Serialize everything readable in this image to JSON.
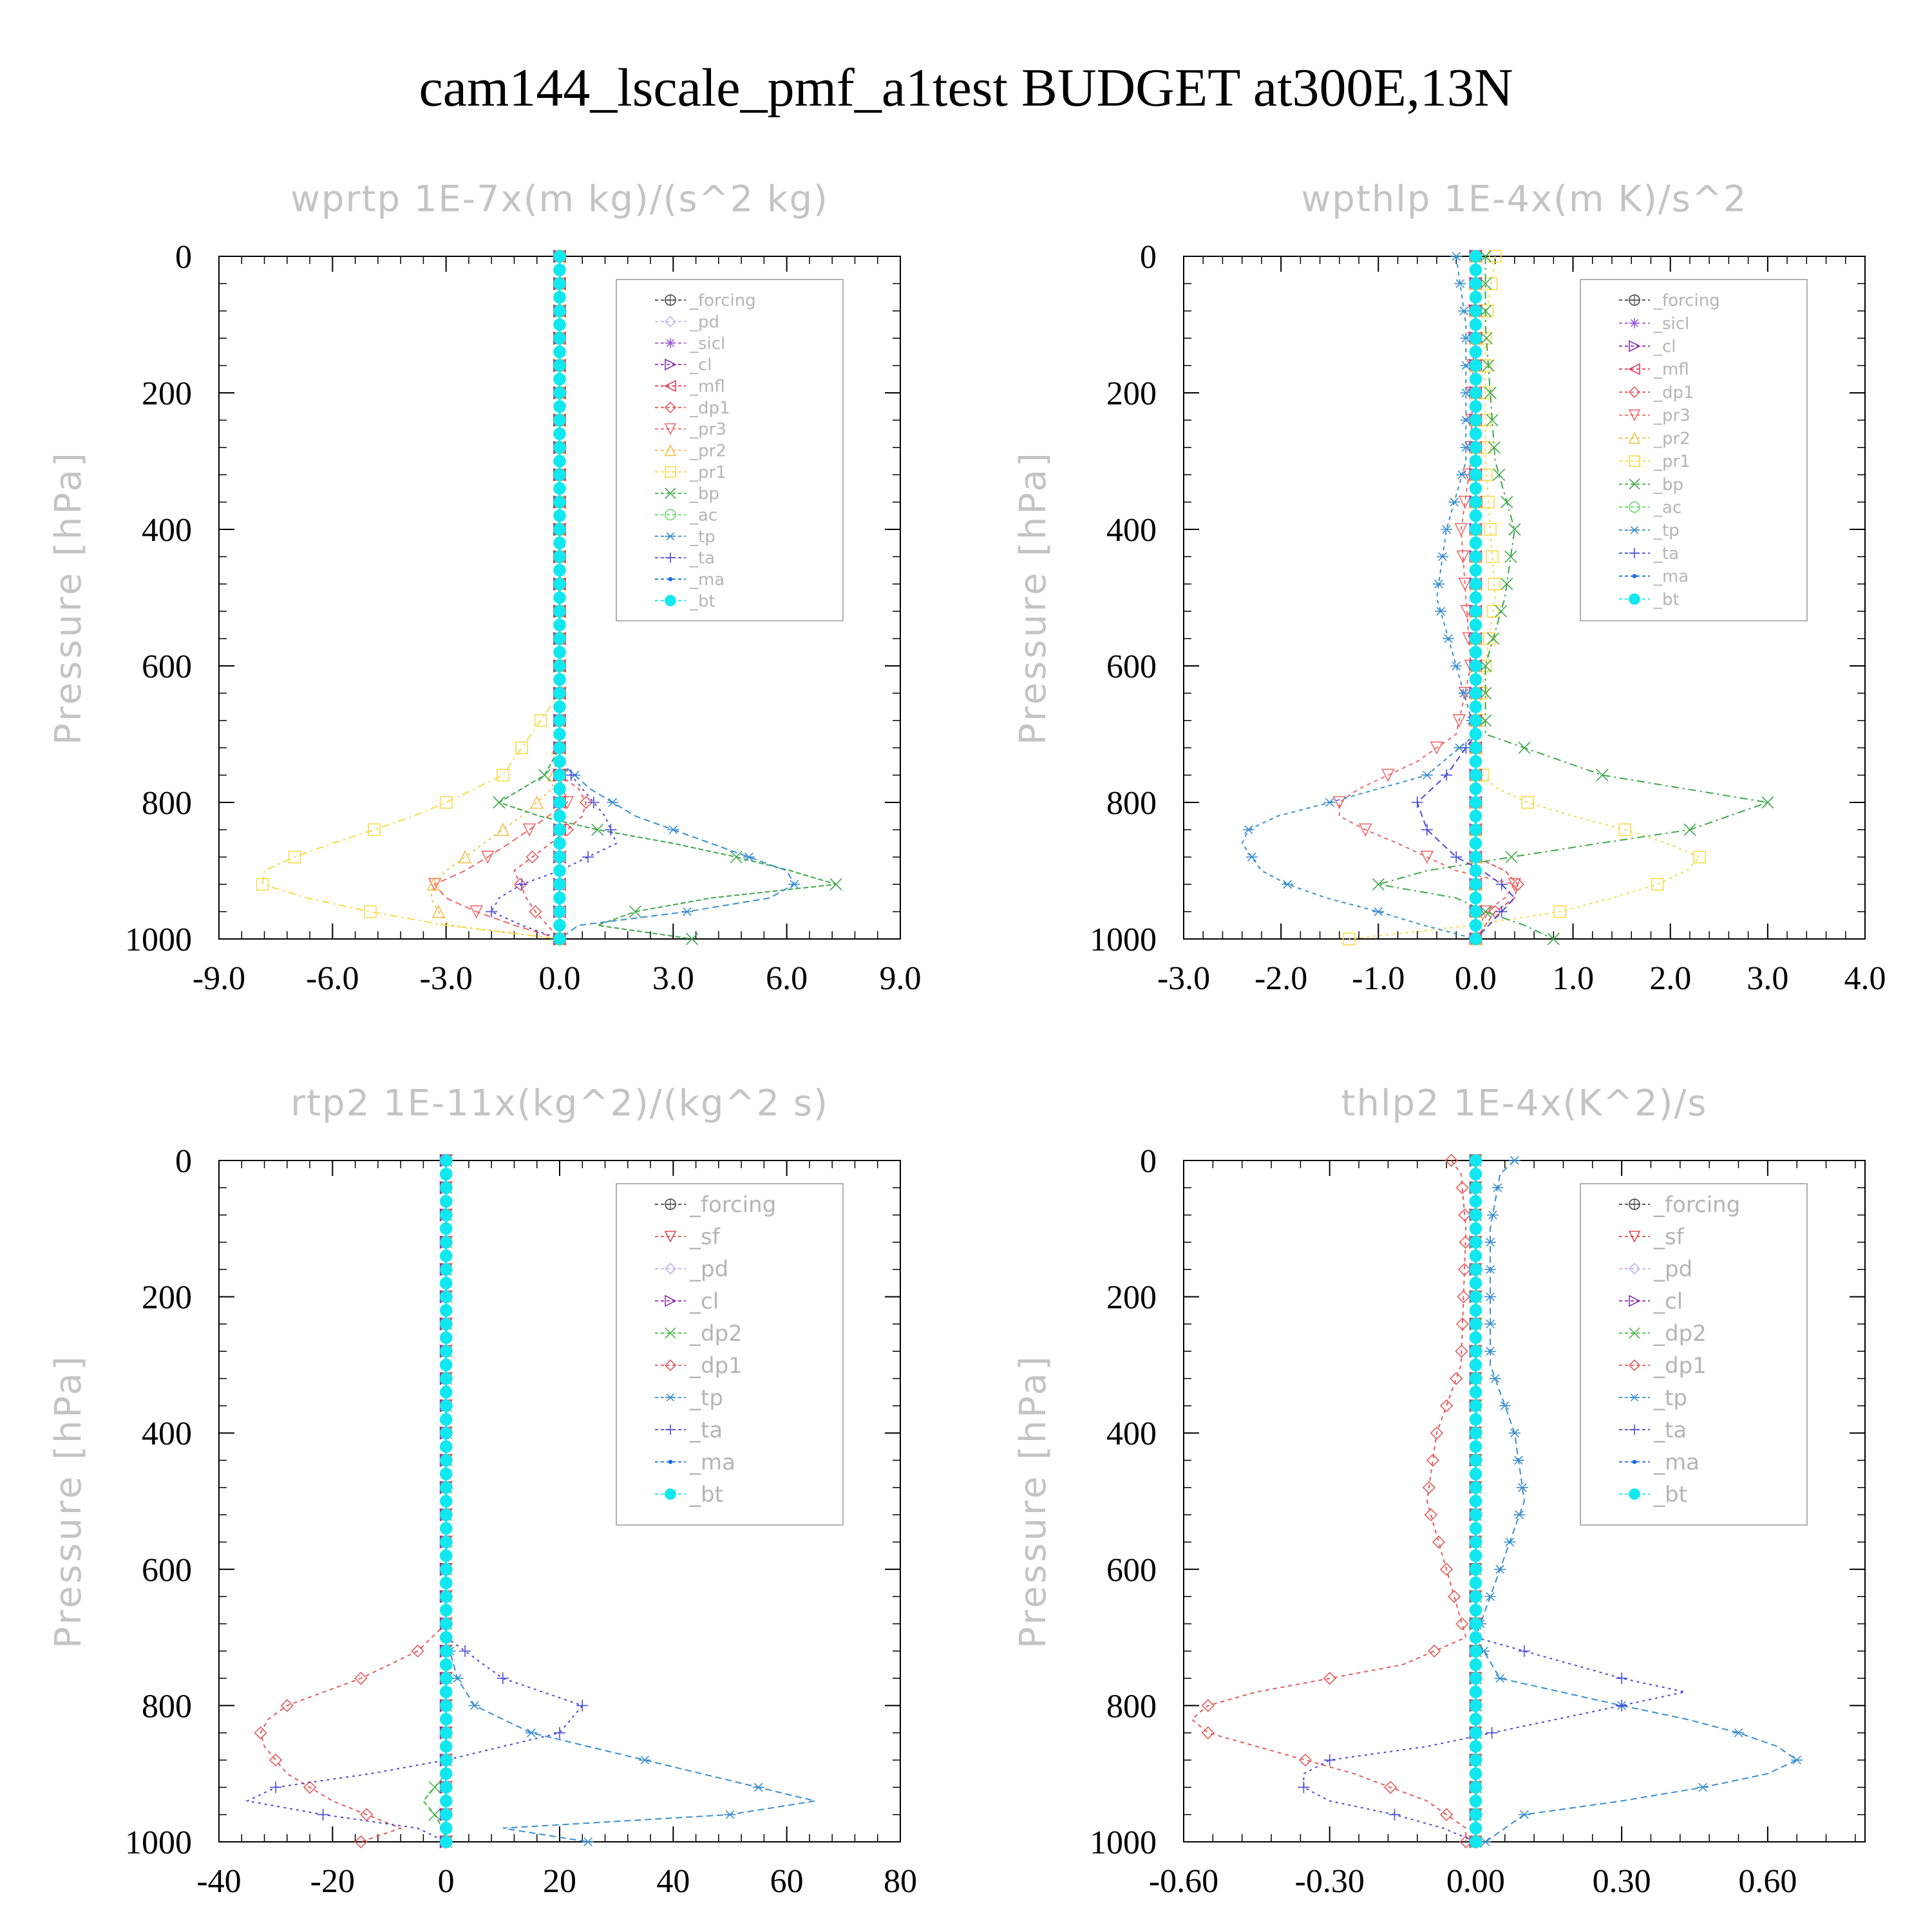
{
  "title": "cam144_lscale_pmf_a1test  BUDGET at300E,13N",
  "colors": {
    "_forcing": "#404040",
    "_pd": "#c9b3f0",
    "_sicl": "#9a5ad8",
    "_cl": "#8a2fae",
    "_mfl": "#e33a5c",
    "_dp1": "#e65a5a",
    "_pr3": "#f06a6a",
    "_pr2": "#f3c14a",
    "_pr1": "#f7dc4a",
    "_bp": "#3ea84a",
    "_ac": "#6ad86a",
    "_tp": "#3a8fcf",
    "_ta": "#4a4ad8",
    "_ma": "#1a6fe0",
    "_bt": "#11e7ee",
    "_sf": "#e24a4a",
    "_dp2": "#4ab84a"
  },
  "chart_data": [
    {
      "type": "line",
      "title": "wprtp  1E-7x(m kg)/(s^2 kg)",
      "xlabel": "",
      "ylabel": "Pressure [hPa]",
      "xlim": [
        -9,
        9
      ],
      "ylim": [
        1000,
        0
      ],
      "xticks": [
        -9,
        -6,
        -3,
        0,
        3,
        6,
        9
      ],
      "xtick_labels": [
        "-9.0",
        "-6.0",
        "-3.0",
        "0.0",
        "3.0",
        "6.0",
        "9.0"
      ],
      "yticks": [
        0,
        200,
        400,
        600,
        800,
        1000
      ],
      "ytick_labels": [
        "0",
        "200",
        "400",
        "600",
        "800",
        "1000"
      ],
      "legend": {
        "position": "top-right",
        "entries": [
          "_forcing",
          "_pd",
          "_sicl",
          "_cl",
          "_mfl",
          "_dp1",
          "_pr3",
          "_pr2",
          "_pr1",
          "_bp",
          "_ac",
          "_tp",
          "_ta",
          "_ma",
          "_bt"
        ]
      },
      "series": [
        {
          "name": "_forcing",
          "p": [
            0,
            1000
          ],
          "v": [
            0,
            0
          ]
        },
        {
          "name": "_pd",
          "p": [
            0,
            1000
          ],
          "v": [
            0,
            0
          ]
        },
        {
          "name": "_sicl",
          "p": [
            0,
            1000
          ],
          "v": [
            0,
            0
          ]
        },
        {
          "name": "_cl",
          "p": [
            0,
            1000
          ],
          "v": [
            0,
            0
          ]
        },
        {
          "name": "_mfl",
          "p": [
            0,
            1000
          ],
          "v": [
            0,
            0
          ]
        },
        {
          "name": "_dp1",
          "p": [
            0,
            760,
            780,
            810,
            850,
            900,
            950,
            1000
          ],
          "v": [
            0,
            0,
            0.5,
            0.8,
            0,
            -1.2,
            -0.8,
            0
          ]
        },
        {
          "name": "_pr3",
          "p": [
            0,
            700,
            760,
            800,
            840,
            870,
            900,
            920,
            940,
            960,
            980,
            1000
          ],
          "v": [
            0,
            0,
            0,
            0.2,
            -0.8,
            -1.6,
            -2.5,
            -3.3,
            -3.0,
            -2.2,
            -1.2,
            0
          ]
        },
        {
          "name": "_pr2",
          "p": [
            0,
            700,
            780,
            820,
            860,
            900,
            930,
            960,
            990,
            1000
          ],
          "v": [
            0,
            0,
            -0.2,
            -1.0,
            -2.0,
            -3.0,
            -3.5,
            -3.2,
            -2.8,
            0
          ]
        },
        {
          "name": "_pr1",
          "p": [
            0,
            640,
            760,
            800,
            830,
            850,
            880,
            910,
            930,
            960,
            980,
            1000
          ],
          "v": [
            0,
            0,
            -1.5,
            -3.0,
            -4.3,
            -5.5,
            -7.0,
            -8.2,
            -7.5,
            -5.0,
            -3.0,
            0
          ]
        },
        {
          "name": "_bp",
          "p": [
            0,
            720,
            760,
            800,
            830,
            860,
            890,
            920,
            940,
            960,
            980,
            1000
          ],
          "v": [
            0,
            0,
            -0.4,
            -1.6,
            0,
            3.0,
            5.5,
            7.3,
            4.0,
            2.0,
            1.0,
            3.5
          ]
        },
        {
          "name": "_ac",
          "p": [
            0,
            1000
          ],
          "v": [
            0,
            0
          ]
        },
        {
          "name": "_tp",
          "p": [
            0,
            740,
            780,
            820,
            860,
            900,
            930,
            950,
            980,
            1000
          ],
          "v": [
            0,
            0,
            0.8,
            2.0,
            4.0,
            6.0,
            6.3,
            4.8,
            0.5,
            0
          ]
        },
        {
          "name": "_ta",
          "p": [
            0,
            740,
            780,
            820,
            860,
            900,
            930,
            960,
            980,
            1000
          ],
          "v": [
            0,
            0,
            0.6,
            1.2,
            1.5,
            0,
            -1.5,
            -1.8,
            -1.0,
            0
          ]
        },
        {
          "name": "_ma",
          "p": [
            0,
            1000
          ],
          "v": [
            0,
            0
          ]
        },
        {
          "name": "_bt",
          "p": [
            0,
            1000
          ],
          "v": [
            0,
            0
          ]
        }
      ]
    },
    {
      "type": "line",
      "title": "wpthlp  1E-4x(m K)/s^2",
      "xlabel": "",
      "ylabel": "Pressure [hPa]",
      "xlim": [
        -3,
        4
      ],
      "ylim": [
        1000,
        0
      ],
      "xticks": [
        -3,
        -2,
        -1,
        0,
        1,
        2,
        3,
        4
      ],
      "xtick_labels": [
        "-3.0",
        "-2.0",
        "-1.0",
        "0.0",
        "1.0",
        "2.0",
        "3.0",
        "4.0"
      ],
      "yticks": [
        0,
        200,
        400,
        600,
        800,
        1000
      ],
      "ytick_labels": [
        "0",
        "200",
        "400",
        "600",
        "800",
        "1000"
      ],
      "legend": {
        "position": "top-right",
        "entries": [
          "_forcing",
          "_sicl",
          "_cl",
          "_mfl",
          "_dp1",
          "_pr3",
          "_pr2",
          "_pr1",
          "_bp",
          "_ac",
          "_tp",
          "_ta",
          "_ma",
          "_bt"
        ]
      },
      "series": [
        {
          "name": "_forcing",
          "p": [
            0,
            1000
          ],
          "v": [
            0,
            0
          ]
        },
        {
          "name": "_sicl",
          "p": [
            0,
            1000
          ],
          "v": [
            0,
            0
          ]
        },
        {
          "name": "_cl",
          "p": [
            0,
            1000
          ],
          "v": [
            0,
            0
          ]
        },
        {
          "name": "_mfl",
          "p": [
            0,
            1000
          ],
          "v": [
            0,
            0
          ]
        },
        {
          "name": "_dp1",
          "p": [
            0,
            880,
            900,
            930,
            960,
            1000
          ],
          "v": [
            0,
            0,
            0.3,
            0.5,
            0.2,
            0
          ]
        },
        {
          "name": "_pr3",
          "p": [
            0,
            300,
            400,
            500,
            600,
            700,
            740,
            780,
            810,
            830,
            860,
            900,
            920,
            940,
            960,
            1000
          ],
          "v": [
            0,
            -0.05,
            -0.15,
            -0.1,
            -0.05,
            -0.2,
            -0.6,
            -1.2,
            -1.5,
            -1.3,
            -0.8,
            -0.2,
            0.4,
            0.3,
            0.1,
            0
          ]
        },
        {
          "name": "_pr2",
          "p": [
            0,
            1000
          ],
          "v": [
            0,
            0
          ]
        },
        {
          "name": "_pr1",
          "p": [
            0,
            100,
            300,
            500,
            600,
            700,
            750,
            790,
            820,
            850,
            880,
            910,
            940,
            970,
            1000
          ],
          "v": [
            0.2,
            0.1,
            0.1,
            0.2,
            0.1,
            0,
            0,
            0.3,
            1.0,
            1.8,
            2.3,
            2.1,
            1.4,
            0.6,
            -1.3
          ]
        },
        {
          "name": "_bp",
          "p": [
            0,
            100,
            300,
            400,
            500,
            600,
            700,
            760,
            800,
            840,
            870,
            900,
            920,
            940,
            960,
            980,
            1000
          ],
          "v": [
            0.1,
            0.1,
            0.2,
            0.4,
            0.3,
            0.1,
            0.1,
            1.3,
            3.0,
            2.2,
            0.8,
            -0.5,
            -1.0,
            -0.2,
            0.1,
            0.5,
            0.8
          ]
        },
        {
          "name": "_ac",
          "p": [
            0,
            1000
          ],
          "v": [
            0,
            0
          ]
        },
        {
          "name": "_tp",
          "p": [
            0,
            100,
            300,
            400,
            500,
            600,
            700,
            760,
            800,
            830,
            860,
            900,
            930,
            960,
            990,
            1000
          ],
          "v": [
            -0.2,
            -0.1,
            -0.1,
            -0.3,
            -0.4,
            -0.2,
            0,
            -0.5,
            -1.5,
            -2.3,
            -2.4,
            -2.2,
            -1.8,
            -1.0,
            -0.3,
            0
          ]
        },
        {
          "name": "_ta",
          "p": [
            0,
            700,
            760,
            800,
            840,
            880,
            910,
            940,
            970,
            1000
          ],
          "v": [
            0,
            0,
            -0.3,
            -0.6,
            -0.5,
            -0.2,
            0.2,
            0.4,
            0.2,
            0
          ]
        },
        {
          "name": "_ma",
          "p": [
            0,
            1000
          ],
          "v": [
            0,
            0
          ]
        },
        {
          "name": "_bt",
          "p": [
            0,
            1000
          ],
          "v": [
            0,
            0
          ]
        }
      ]
    },
    {
      "type": "line",
      "title": "rtp2  1E-11x(kg^2)/(kg^2 s)",
      "xlabel": "",
      "ylabel": "Pressure [hPa]",
      "xlim": [
        -40,
        80
      ],
      "ylim": [
        1000,
        0
      ],
      "xticks": [
        -40,
        -20,
        0,
        20,
        40,
        60,
        80
      ],
      "xtick_labels": [
        "-40",
        "-20",
        "0",
        "20",
        "40",
        "60",
        "80"
      ],
      "yticks": [
        0,
        200,
        400,
        600,
        800,
        1000
      ],
      "ytick_labels": [
        "0",
        "200",
        "400",
        "600",
        "800",
        "1000"
      ],
      "legend": {
        "position": "top-right",
        "entries": [
          "_forcing",
          "_sf",
          "_pd",
          "_cl",
          "_dp2",
          "_dp1",
          "_tp",
          "_ta",
          "_ma",
          "_bt"
        ]
      },
      "series": [
        {
          "name": "_forcing",
          "p": [
            0,
            1000
          ],
          "v": [
            0,
            0
          ]
        },
        {
          "name": "_sf",
          "p": [
            0,
            1000
          ],
          "v": [
            0,
            0
          ]
        },
        {
          "name": "_pd",
          "p": [
            0,
            1000
          ],
          "v": [
            0,
            0
          ]
        },
        {
          "name": "_cl",
          "p": [
            0,
            1000
          ],
          "v": [
            0,
            0
          ]
        },
        {
          "name": "_dp2",
          "p": [
            0,
            900,
            940,
            970,
            1000
          ],
          "v": [
            0,
            0,
            -4,
            -1,
            0
          ]
        },
        {
          "name": "_dp1",
          "p": [
            0,
            680,
            720,
            760,
            800,
            830,
            860,
            900,
            940,
            980,
            1000
          ],
          "v": [
            0,
            0,
            -5,
            -15,
            -28,
            -33,
            -32,
            -28,
            -20,
            -8,
            -15
          ]
        },
        {
          "name": "_tp",
          "p": [
            0,
            700,
            760,
            800,
            840,
            880,
            920,
            940,
            960,
            980,
            1000
          ],
          "v": [
            0,
            0,
            2,
            5,
            15,
            35,
            55,
            65,
            50,
            10,
            25
          ]
        },
        {
          "name": "_ta",
          "p": [
            0,
            700,
            760,
            800,
            840,
            880,
            910,
            930,
            950,
            980,
            1000
          ],
          "v": [
            0,
            0,
            10,
            24,
            20,
            0,
            -20,
            -40,
            -30,
            -5,
            0
          ]
        },
        {
          "name": "_ma",
          "p": [
            0,
            1000
          ],
          "v": [
            0,
            0
          ]
        },
        {
          "name": "_bt",
          "p": [
            0,
            1000
          ],
          "v": [
            0,
            0
          ]
        }
      ]
    },
    {
      "type": "line",
      "title": "thlp2  1E-4x(K^2)/s",
      "xlabel": "",
      "ylabel": "Pressure [hPa]",
      "xlim": [
        -0.6,
        0.8
      ],
      "ylim": [
        1000,
        0
      ],
      "xticks": [
        -0.6,
        -0.3,
        0,
        0.3,
        0.6
      ],
      "xtick_labels": [
        "-0.60",
        "-0.30",
        "0.00",
        "0.30",
        "0.60"
      ],
      "yticks": [
        0,
        200,
        400,
        600,
        800,
        1000
      ],
      "ytick_labels": [
        "0",
        "200",
        "400",
        "600",
        "800",
        "1000"
      ],
      "legend": {
        "position": "top-right",
        "entries": [
          "_forcing",
          "_sf",
          "_pd",
          "_cl",
          "_dp2",
          "_dp1",
          "_tp",
          "_ta",
          "_ma",
          "_bt"
        ]
      },
      "series": [
        {
          "name": "_forcing",
          "p": [
            0,
            1000
          ],
          "v": [
            0,
            0
          ]
        },
        {
          "name": "_sf",
          "p": [
            0,
            1000
          ],
          "v": [
            0,
            0
          ]
        },
        {
          "name": "_pd",
          "p": [
            0,
            1000
          ],
          "v": [
            0,
            0
          ]
        },
        {
          "name": "_cl",
          "p": [
            0,
            1000
          ],
          "v": [
            0,
            0
          ]
        },
        {
          "name": "_dp2",
          "p": [
            0,
            1000
          ],
          "v": [
            0,
            0
          ]
        },
        {
          "name": "_dp1",
          "p": [
            0,
            20,
            100,
            300,
            400,
            500,
            600,
            700,
            740,
            780,
            810,
            840,
            870,
            900,
            940,
            980,
            1000
          ],
          "v": [
            -0.05,
            -0.03,
            -0.02,
            -0.03,
            -0.08,
            -0.1,
            -0.06,
            -0.02,
            -0.15,
            -0.45,
            -0.6,
            -0.55,
            -0.4,
            -0.25,
            -0.1,
            -0.02,
            -0.02
          ]
        },
        {
          "name": "_tp",
          "p": [
            0,
            20,
            100,
            300,
            400,
            500,
            600,
            700,
            760,
            800,
            830,
            860,
            880,
            900,
            930,
            960,
            1000
          ],
          "v": [
            0.08,
            0.05,
            0.03,
            0.03,
            0.08,
            0.1,
            0.05,
            0,
            0.05,
            0.3,
            0.5,
            0.62,
            0.66,
            0.6,
            0.4,
            0.1,
            0.02
          ]
        },
        {
          "name": "_ta",
          "p": [
            0,
            700,
            760,
            780,
            800,
            830,
            860,
            880,
            910,
            940,
            970,
            1000
          ],
          "v": [
            0,
            0,
            0.3,
            0.43,
            0.3,
            0.1,
            -0.1,
            -0.3,
            -0.38,
            -0.3,
            -0.1,
            0
          ]
        },
        {
          "name": "_ma",
          "p": [
            0,
            1000
          ],
          "v": [
            0,
            0
          ]
        },
        {
          "name": "_bt",
          "p": [
            0,
            1000
          ],
          "v": [
            0,
            0
          ]
        }
      ]
    }
  ]
}
